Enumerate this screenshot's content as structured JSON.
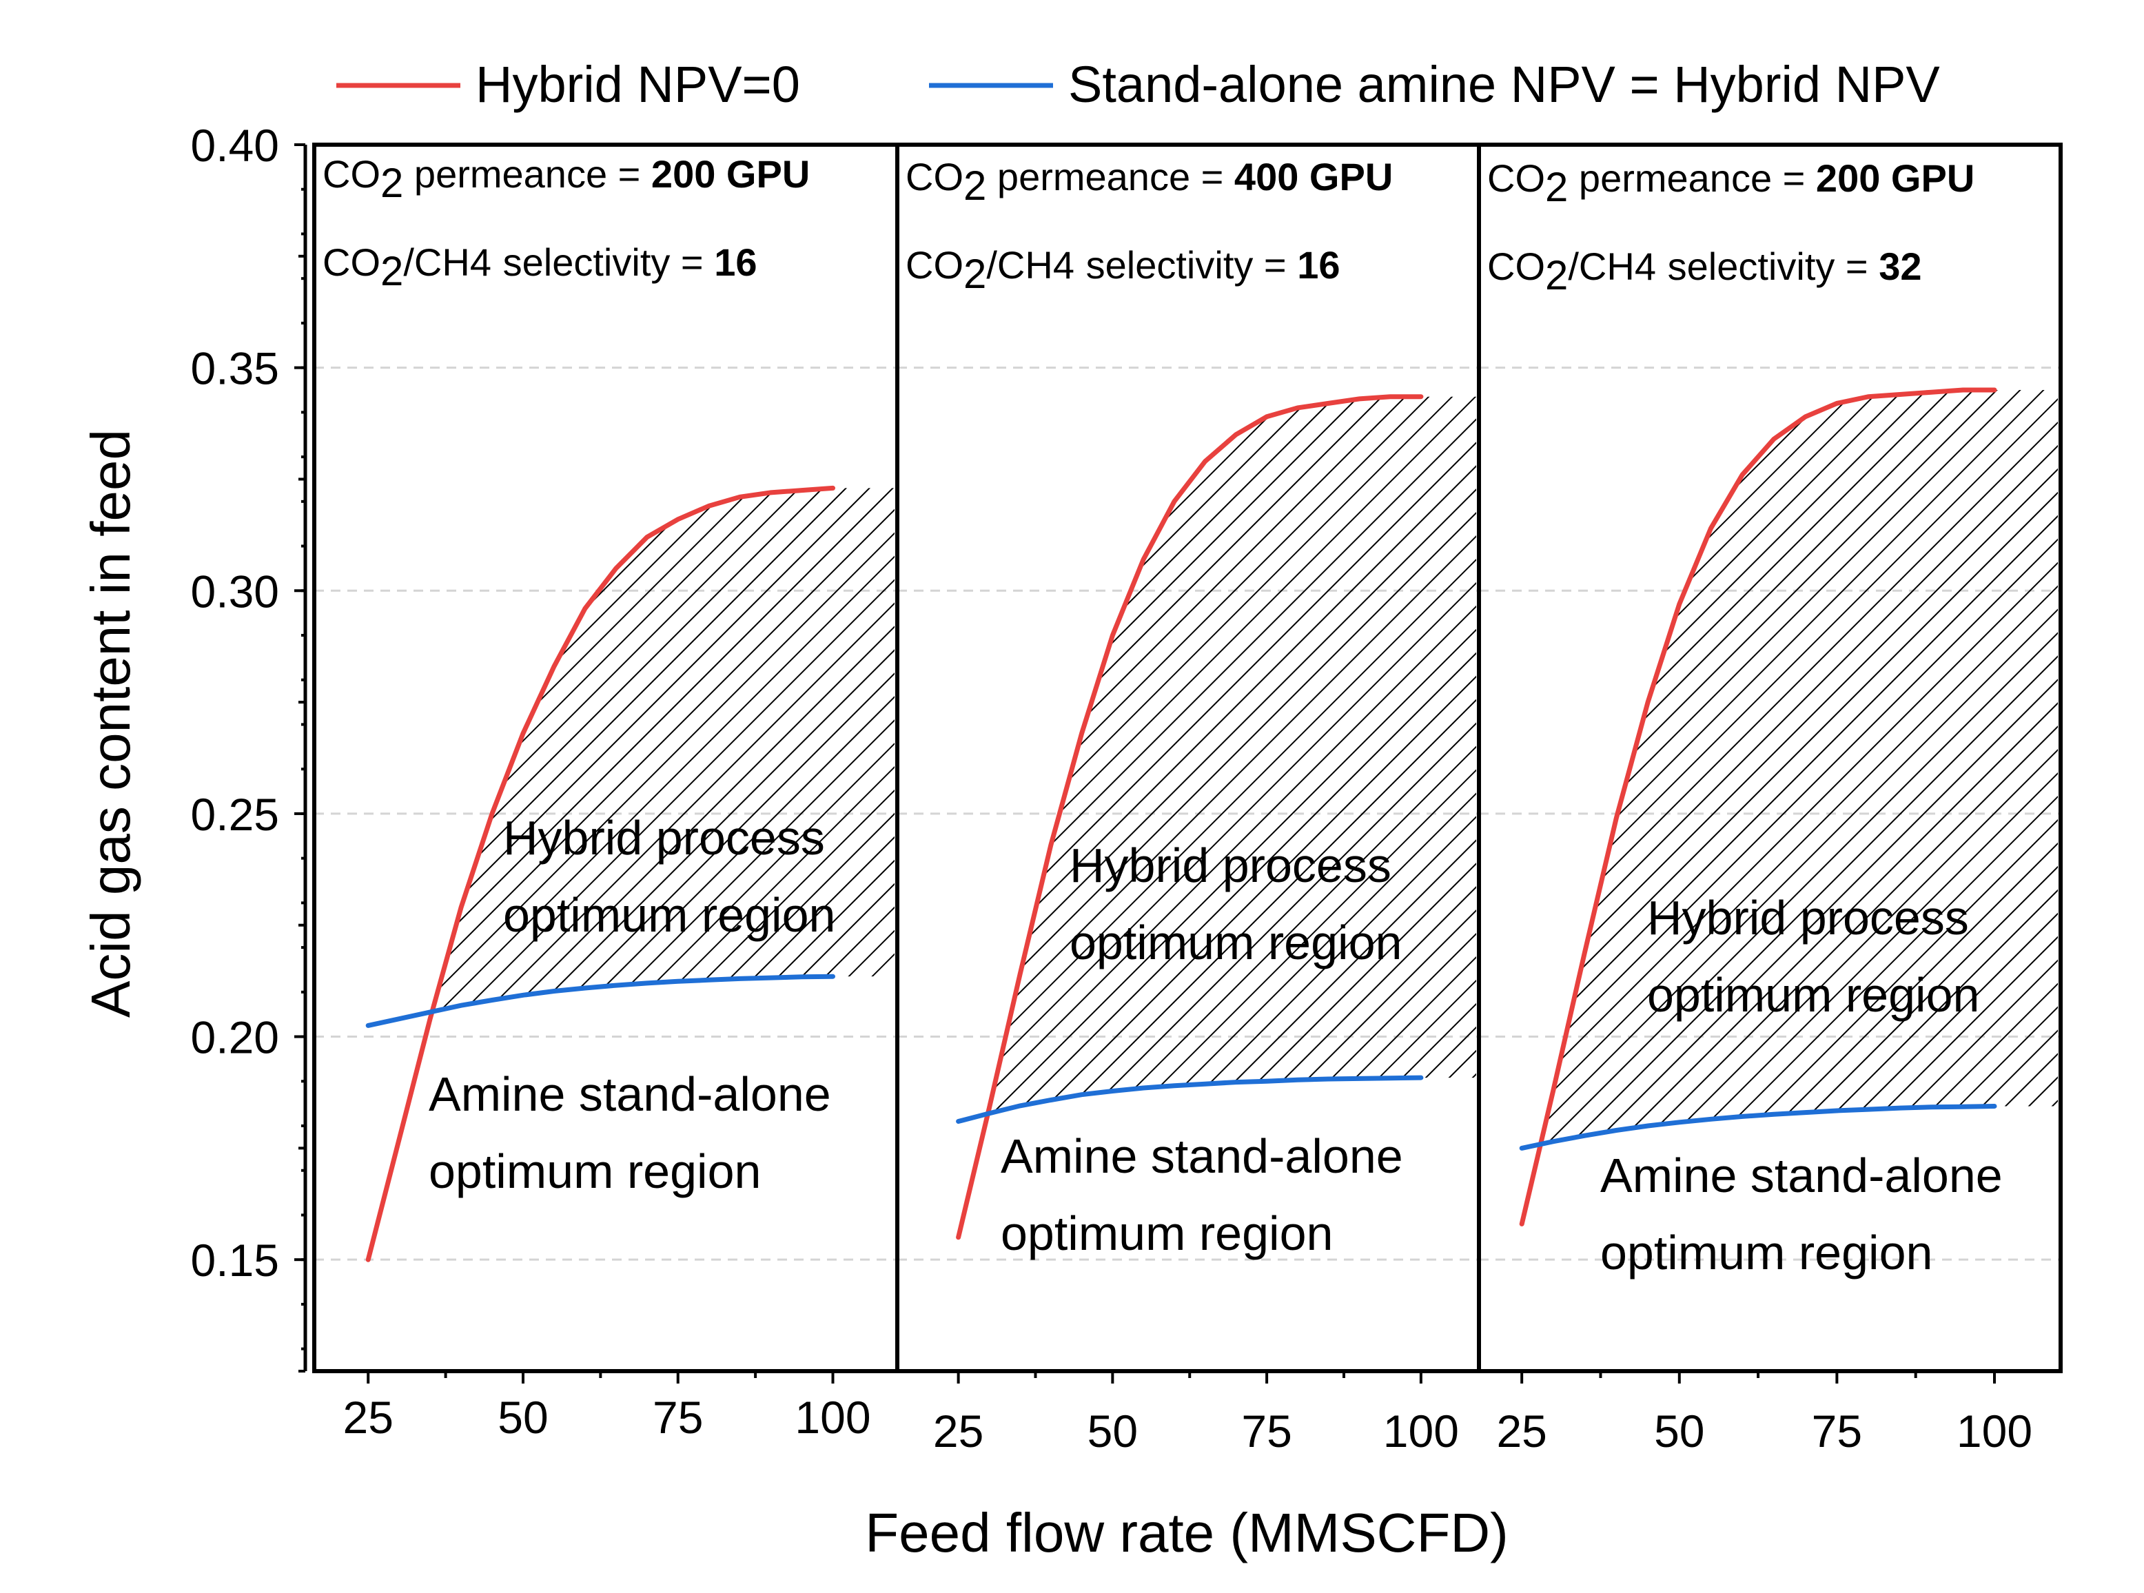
{
  "chart_data": {
    "type": "line",
    "xlabel": "Feed flow rate (MMSCFD)",
    "ylabel": "Acid gas content in feed",
    "ylim": [
      0.125,
      0.4
    ],
    "yticks": [
      "0.15",
      "0.20",
      "0.25",
      "0.30",
      "0.35",
      "0.40"
    ],
    "xticks": [
      "25",
      "50",
      "75",
      "100"
    ],
    "grid": true,
    "legend_position": "top",
    "legend": [
      {
        "name": "Hybrid NPV=0",
        "color": "#e8413e"
      },
      {
        "name": "Stand-alone amine NPV = Hybrid NPV",
        "color": "#1f6fd6"
      }
    ],
    "panels": [
      {
        "permeance_label": "CO2 permeance = ",
        "permeance_value": "200 GPU",
        "selectivity_label": "CO2/CH4 selectivity = ",
        "selectivity_value": "16",
        "hybrid_region_label": [
          "Hybrid process",
          "optimum region"
        ],
        "amine_region_label": [
          "Amine stand-alone",
          "optimum region"
        ],
        "xlim": [
          16.3,
          110.4
        ],
        "series": [
          {
            "name": "Hybrid NPV=0",
            "x": [
              25,
              30,
              35,
              40,
              45,
              50,
              55,
              60,
              65,
              70,
              75,
              80,
              85,
              90,
              95,
              100
            ],
            "y": [
              0.15,
              0.177,
              0.204,
              0.229,
              0.25,
              0.268,
              0.283,
              0.296,
              0.305,
              0.312,
              0.316,
              0.319,
              0.321,
              0.322,
              0.3225,
              0.323
            ]
          },
          {
            "name": "Stand-alone amine NPV = Hybrid NPV",
            "x": [
              25,
              30,
              35,
              40,
              45,
              50,
              55,
              60,
              65,
              70,
              75,
              80,
              85,
              90,
              95,
              100
            ],
            "y": [
              0.2025,
              0.204,
              0.2055,
              0.207,
              0.2082,
              0.2093,
              0.2102,
              0.2109,
              0.2115,
              0.212,
              0.2124,
              0.2127,
              0.213,
              0.2132,
              0.2134,
              0.2135
            ]
          }
        ]
      },
      {
        "permeance_label": "CO2 permeance = ",
        "permeance_value": "400 GPU",
        "selectivity_label": "CO2/CH4 selectivity = ",
        "selectivity_value": "16",
        "hybrid_region_label": [
          "Hybrid process",
          "optimum region"
        ],
        "amine_region_label": [
          "Amine stand-alone",
          "optimum region"
        ],
        "xlim": [
          15.1,
          109.4
        ],
        "series": [
          {
            "name": "Hybrid NPV=0",
            "x": [
              25,
              30,
              35,
              40,
              45,
              50,
              55,
              60,
              65,
              70,
              75,
              80,
              85,
              90,
              95,
              100
            ],
            "y": [
              0.155,
              0.184,
              0.214,
              0.243,
              0.268,
              0.29,
              0.307,
              0.32,
              0.329,
              0.335,
              0.339,
              0.341,
              0.342,
              0.343,
              0.3435,
              0.3435
            ]
          },
          {
            "name": "Stand-alone amine NPV = Hybrid NPV",
            "x": [
              25,
              30,
              35,
              40,
              45,
              50,
              55,
              60,
              65,
              70,
              75,
              80,
              85,
              90,
              95,
              100
            ],
            "y": [
              0.181,
              0.1828,
              0.1845,
              0.1858,
              0.187,
              0.1878,
              0.1885,
              0.189,
              0.1894,
              0.1898,
              0.19,
              0.1903,
              0.1905,
              0.1906,
              0.1907,
              0.1908
            ]
          }
        ]
      },
      {
        "permeance_label": "CO2 permeance = ",
        "permeance_value": "200 GPU",
        "selectivity_label": "CO2/CH4 selectivity = ",
        "selectivity_value": "32",
        "hybrid_region_label": [
          "Hybrid process",
          "optimum region"
        ],
        "amine_region_label": [
          "Amine stand-alone",
          "optimum region"
        ],
        "xlim": [
          18.2,
          110.5
        ],
        "series": [
          {
            "name": "Hybrid NPV=0",
            "x": [
              25,
              30,
              35,
              40,
              45,
              50,
              55,
              60,
              65,
              70,
              75,
              80,
              85,
              90,
              95,
              100
            ],
            "y": [
              0.158,
              0.188,
              0.219,
              0.249,
              0.275,
              0.297,
              0.314,
              0.326,
              0.334,
              0.339,
              0.342,
              0.3435,
              0.344,
              0.3445,
              0.345,
              0.345
            ]
          },
          {
            "name": "Stand-alone amine NPV = Hybrid NPV",
            "x": [
              25,
              30,
              35,
              40,
              45,
              50,
              55,
              60,
              65,
              70,
              75,
              80,
              85,
              90,
              95,
              100
            ],
            "y": [
              0.175,
              0.1765,
              0.1778,
              0.179,
              0.18,
              0.1808,
              0.1815,
              0.1821,
              0.1826,
              0.183,
              0.1834,
              0.1837,
              0.184,
              0.1842,
              0.1843,
              0.1844
            ]
          }
        ]
      }
    ]
  }
}
